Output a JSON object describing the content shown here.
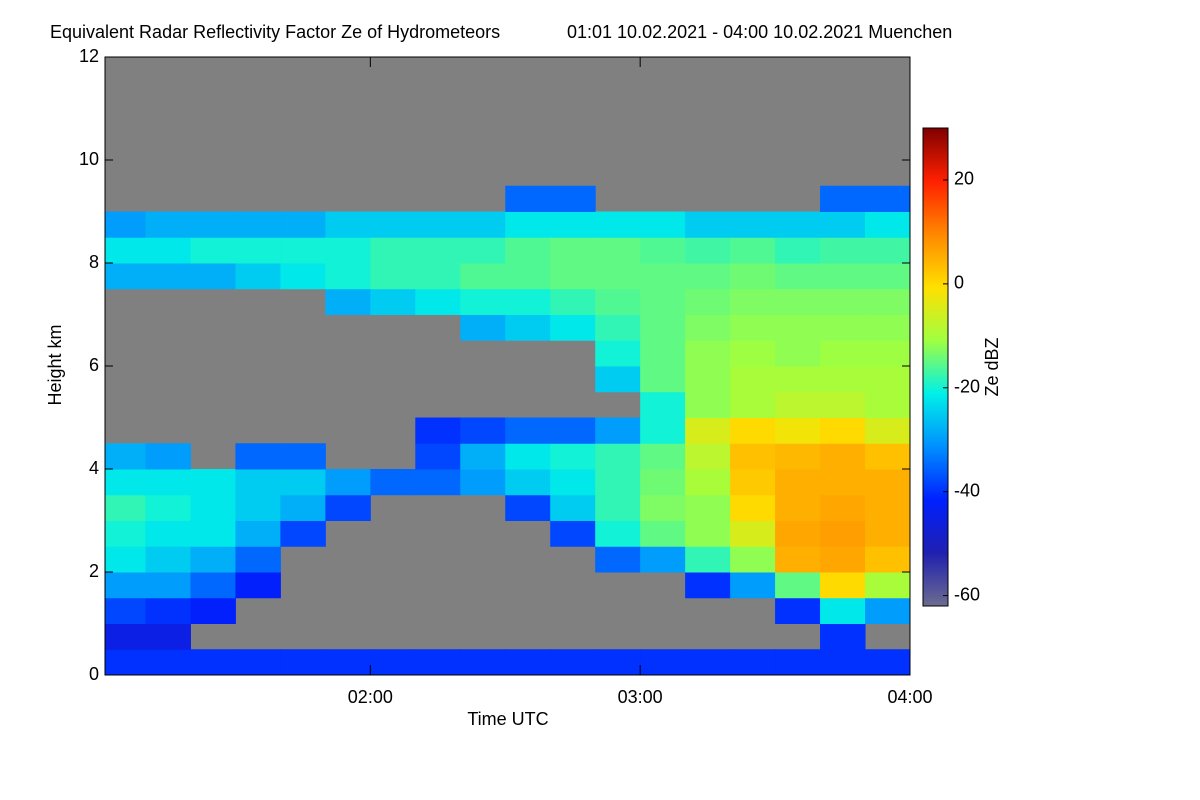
{
  "chart_data": {
    "type": "heatmap",
    "title": "Equivalent Radar Reflectivity Factor Ze of Hydrometeors",
    "subtitle": "01:01 10.02.2021 - 04:00 10.02.2021 Muenchen",
    "xlabel": "Time UTC",
    "ylabel": "Height km",
    "colorbar_label": "Ze dBZ",
    "x": [
      "01:05",
      "01:15",
      "01:25",
      "01:35",
      "01:45",
      "01:55",
      "02:05",
      "02:15",
      "02:25",
      "02:35",
      "02:45",
      "02:55",
      "03:05",
      "03:15",
      "03:25",
      "03:35",
      "03:45",
      "03:55"
    ],
    "y": [
      0.25,
      0.75,
      1.25,
      1.75,
      2.25,
      2.75,
      3.25,
      3.75,
      4.25,
      4.75,
      5.25,
      5.75,
      6.25,
      6.75,
      7.25,
      7.75,
      8.25,
      8.75,
      9.25,
      9.75
    ],
    "z": [
      [
        -40,
        -45,
        -38,
        -30,
        -22,
        -20,
        -18,
        -22,
        -28,
        null,
        null,
        null,
        null,
        null,
        null,
        -28,
        -22,
        -30,
        null,
        null
      ],
      [
        -40,
        -45,
        -40,
        -30,
        -25,
        -22,
        -20,
        -22,
        -30,
        null,
        null,
        null,
        null,
        null,
        null,
        -28,
        -22,
        -28,
        null,
        null
      ],
      [
        -40,
        null,
        -42,
        -35,
        -28,
        -22,
        -22,
        -22,
        null,
        null,
        null,
        null,
        null,
        null,
        null,
        -28,
        -20,
        -28,
        null,
        null
      ],
      [
        -40,
        null,
        null,
        -42,
        -35,
        -28,
        -25,
        -25,
        -35,
        null,
        null,
        null,
        null,
        null,
        null,
        -25,
        -20,
        -28,
        null,
        null
      ],
      [
        -40,
        null,
        null,
        null,
        null,
        -38,
        -28,
        -25,
        -35,
        null,
        null,
        null,
        null,
        null,
        null,
        -22,
        -20,
        -28,
        null,
        null
      ],
      [
        -40,
        null,
        null,
        null,
        null,
        null,
        -38,
        -30,
        null,
        null,
        null,
        null,
        null,
        null,
        -28,
        -20,
        -20,
        -25,
        null,
        null
      ],
      [
        -40,
        null,
        null,
        null,
        null,
        null,
        null,
        -35,
        null,
        null,
        null,
        null,
        null,
        null,
        -25,
        -18,
        -18,
        -25,
        null,
        null
      ],
      [
        -40,
        null,
        null,
        null,
        null,
        null,
        null,
        -35,
        -38,
        -40,
        null,
        null,
        null,
        null,
        -22,
        -18,
        -18,
        -25,
        null,
        null
      ],
      [
        -40,
        null,
        null,
        null,
        null,
        null,
        null,
        -30,
        -28,
        -38,
        null,
        null,
        null,
        -28,
        -20,
        -16,
        -18,
        -25,
        null,
        null
      ],
      [
        -40,
        null,
        null,
        null,
        null,
        null,
        -38,
        -25,
        -22,
        -35,
        null,
        null,
        null,
        -25,
        -20,
        -16,
        -16,
        -22,
        -35,
        null
      ],
      [
        -40,
        null,
        null,
        null,
        null,
        -38,
        -25,
        -22,
        -20,
        -35,
        null,
        null,
        null,
        -22,
        -18,
        -15,
        -15,
        -22,
        -35,
        null
      ],
      [
        -40,
        null,
        null,
        null,
        -35,
        -20,
        -18,
        -18,
        -18,
        -30,
        null,
        -25,
        -20,
        -18,
        -16,
        -15,
        -15,
        -22,
        null,
        null
      ],
      [
        -40,
        null,
        null,
        null,
        -30,
        -15,
        -13,
        -14,
        -15,
        -20,
        -20,
        -15,
        -15,
        -15,
        -15,
        -15,
        -16,
        -22,
        null,
        null
      ],
      [
        -40,
        null,
        null,
        -40,
        -18,
        -12,
        -12,
        -10,
        -8,
        -5,
        -12,
        -12,
        -12,
        -13,
        -14,
        -15,
        -17,
        -25,
        null,
        null
      ],
      [
        -40,
        null,
        null,
        -30,
        -12,
        -5,
        0,
        2,
        3,
        0,
        -10,
        -10,
        -11,
        -12,
        -13,
        -14,
        -16,
        -25,
        null,
        null
      ],
      [
        -40,
        null,
        -40,
        -15,
        5,
        6,
        5,
        5,
        4,
        -2,
        -8,
        -10,
        -12,
        -12,
        -13,
        -15,
        -18,
        -25,
        null,
        null
      ],
      [
        -40,
        -40,
        -22,
        0,
        6,
        7,
        6,
        5,
        5,
        0,
        -8,
        -10,
        -11,
        -12,
        -13,
        -15,
        -17,
        -25,
        -35,
        null
      ],
      [
        -40,
        null,
        -30,
        -10,
        3,
        5,
        5,
        5,
        3,
        -5,
        -10,
        -10,
        -11,
        -12,
        -13,
        -15,
        -17,
        -22,
        -35,
        null
      ]
    ],
    "xlim": [
      "01:01",
      "04:00"
    ],
    "xticks": [
      "02:00",
      "03:00",
      "04:00"
    ],
    "ylim": [
      0,
      12
    ],
    "yticks": [
      0,
      2,
      4,
      6,
      8,
      10,
      12
    ],
    "clim": [
      -62,
      30
    ],
    "cticks": [
      -60,
      -40,
      -20,
      0,
      20
    ],
    "colors": [
      "#6c6c90",
      "#2020b0",
      "#0020ff",
      "#0090ff",
      "#00f0e8",
      "#a0ff40",
      "#ffe000",
      "#ff8800",
      "#ff2000",
      "#800000"
    ],
    "nodata_color": "#808080"
  }
}
